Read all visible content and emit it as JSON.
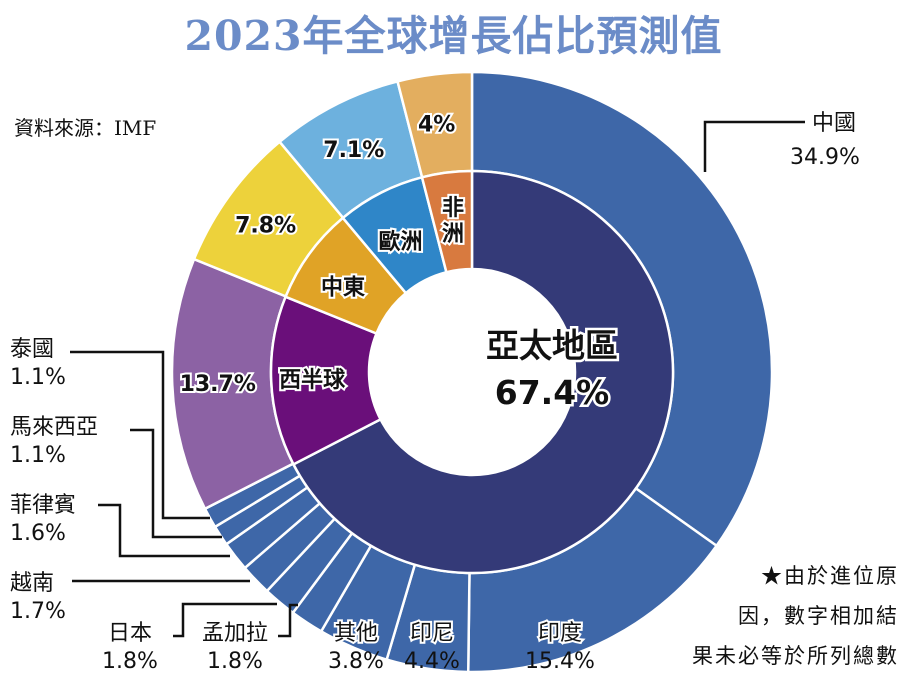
{
  "title": "2023年全球增長佔比預測值",
  "source": "資料來源：IMF",
  "note_lines": [
    "★由於進位原",
    "因，數字相加結",
    "果未必等於所列總數"
  ],
  "chart_data": {
    "type": "pie",
    "subtype": "nested-donut",
    "title": "2023年全球增長佔比預測值",
    "source": "資料來源：IMF",
    "inner_ring": [
      {
        "name": "亞太地區",
        "value": 67.4,
        "label": "67.4%",
        "color": "#343a78"
      },
      {
        "name": "西半球",
        "value": 13.7,
        "color": "#6a0f7a"
      },
      {
        "name": "中東",
        "value": 7.8,
        "color": "#e0a326"
      },
      {
        "name": "歐洲",
        "value": 7.1,
        "color": "#2f86c8"
      },
      {
        "name": "非洲",
        "value": 4.0,
        "color": "#d87a3f"
      }
    ],
    "outer_ring": [
      {
        "name": "中國",
        "value": 34.9,
        "label": "34.9%",
        "color": "#3e67a8",
        "group": "亞太地區"
      },
      {
        "name": "印度",
        "value": 15.4,
        "label": "15.4%",
        "color": "#3e67a8",
        "group": "亞太地區"
      },
      {
        "name": "印尼",
        "value": 4.4,
        "label": "4.4%",
        "color": "#3e67a8",
        "group": "亞太地區"
      },
      {
        "name": "其他",
        "value": 3.8,
        "label": "3.8%",
        "color": "#3e67a8",
        "group": "亞太地區"
      },
      {
        "name": "孟加拉",
        "value": 1.8,
        "label": "1.8%",
        "color": "#3e67a8",
        "group": "亞太地區"
      },
      {
        "name": "日本",
        "value": 1.8,
        "label": "1.8%",
        "color": "#3e67a8",
        "group": "亞太地區"
      },
      {
        "name": "越南",
        "value": 1.7,
        "label": "1.7%",
        "color": "#3e67a8",
        "group": "亞太地區"
      },
      {
        "name": "菲律賓",
        "value": 1.6,
        "label": "1.6%",
        "color": "#3e67a8",
        "group": "亞太地區"
      },
      {
        "name": "馬來西亞",
        "value": 1.1,
        "label": "1.1%",
        "color": "#3e67a8",
        "group": "亞太地區"
      },
      {
        "name": "泰國",
        "value": 1.1,
        "label": "1.1%",
        "color": "#3e67a8",
        "group": "亞太地區"
      },
      {
        "name": "西半球",
        "value": 13.7,
        "label": "13.7%",
        "color": "#8c62a4",
        "group": "西半球"
      },
      {
        "name": "中東",
        "value": 7.8,
        "label": "7.8%",
        "color": "#edd23b",
        "group": "中東"
      },
      {
        "name": "歐洲",
        "value": 7.1,
        "label": "7.1%",
        "color": "#6db1de",
        "group": "歐洲"
      },
      {
        "name": "非洲",
        "value": 4.0,
        "label": "4%",
        "color": "#e3ae5f",
        "group": "非洲"
      }
    ]
  }
}
